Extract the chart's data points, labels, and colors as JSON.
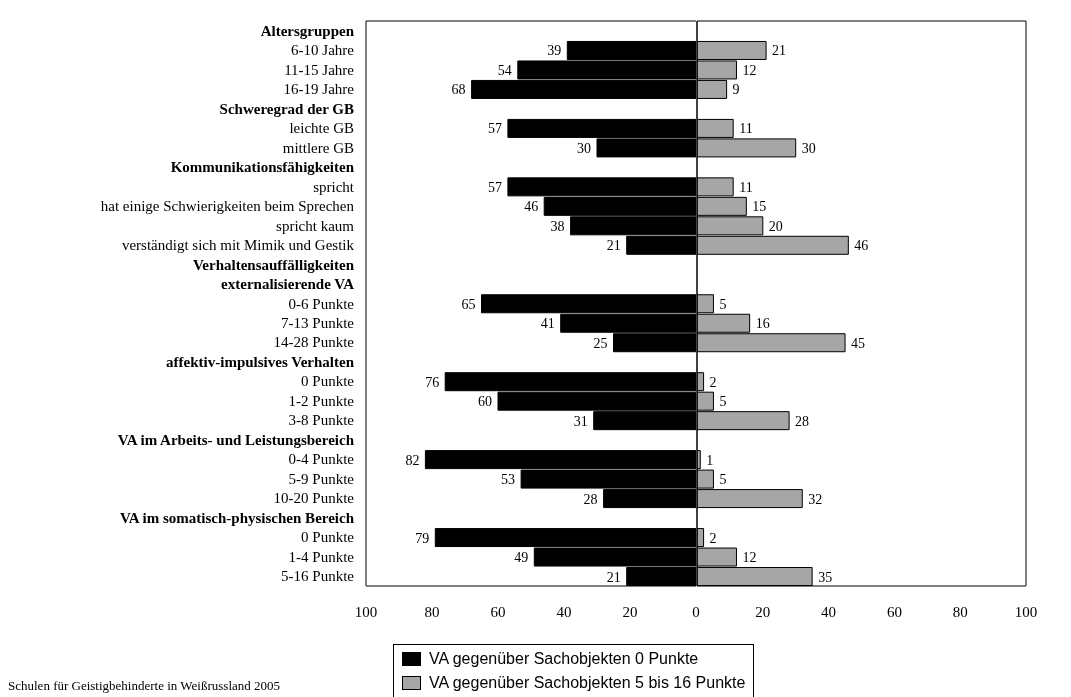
{
  "chart_data": [
    {
      "type": "bar",
      "orientation": "horizontal",
      "categories": [
        "Altersgruppen",
        "6-10 Jahre",
        "11-15 Jahre",
        "16-19 Jahre",
        "Schweregrad der GB",
        "leichte GB",
        "mittlere GB",
        "Kommunikationsfähigkeiten",
        "spricht",
        "hat einige Schwierigkeiten beim Sprechen",
        "spricht kaum",
        "verständigt sich mit Mimik und Gestik",
        "Verhaltensauffälligkeiten",
        "externalisierende VA",
        "0-6 Punkte",
        "7-13 Punkte",
        "14-28 Punkte",
        "affektiv-impulsives Verhalten",
        "0 Punkte",
        "1-2 Punkte",
        "3-8 Punkte",
        "VA im Arbeits- und Leistungsbereich",
        "0-4 Punkte",
        "5-9 Punkte",
        "10-20 Punkte",
        "VA im somatisch-physischen Bereich",
        "0 Punkte",
        "1-4 Punkte",
        "5-16 Punkte"
      ],
      "series": [
        {
          "name": "VA gegenüber Sachobjekten 0 Punkte",
          "color": "#000000",
          "values": [
            null,
            39,
            54,
            68,
            null,
            57,
            30,
            null,
            57,
            46,
            38,
            21,
            null,
            null,
            65,
            41,
            25,
            null,
            76,
            60,
            31,
            null,
            82,
            53,
            28,
            null,
            79,
            49,
            21
          ]
        }
      ],
      "xlim": [
        100,
        0
      ],
      "xticks": [
        100,
        80,
        60,
        40,
        20,
        0
      ],
      "data_labels": true,
      "legend": "bottom",
      "annotations": [
        "Schulen für Geistigbehinderte in Weißrussland 2005"
      ]
    },
    {
      "type": "bar",
      "orientation": "horizontal",
      "series": [
        {
          "name": "VA gegenüber Sachobjekten 5 bis 16 Punkte",
          "color": "#a6a6a6",
          "values": [
            null,
            21,
            12,
            9,
            null,
            11,
            30,
            null,
            11,
            15,
            20,
            46,
            null,
            null,
            5,
            16,
            45,
            null,
            2,
            5,
            28,
            null,
            1,
            5,
            32,
            null,
            2,
            12,
            35
          ]
        }
      ],
      "xlim": [
        0,
        100
      ],
      "xticks": [
        20,
        40,
        60,
        80,
        100
      ],
      "data_labels": true,
      "legend": "bottom",
      "tick_labels": "x"
    }
  ]
}
